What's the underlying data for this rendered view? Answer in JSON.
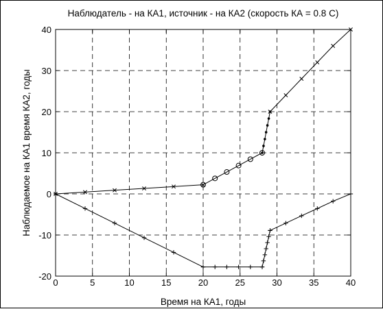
{
  "chart_data": {
    "type": "line",
    "title": "Наблюдатель - на КА1, источник - на КА2  (скорость КА = 0.8 С)",
    "xlabel": "Время на КА1, годы",
    "ylabel": "Наблюдаемое на КА1 время КА2, годы",
    "xlim": [
      0,
      40
    ],
    "ylim": [
      -20,
      40
    ],
    "xticks": [
      0,
      5,
      10,
      15,
      20,
      25,
      30,
      35,
      40
    ],
    "yticks": [
      -20,
      -10,
      0,
      10,
      20,
      30,
      40
    ],
    "xtick_labels": [
      "0",
      "5",
      "10",
      "15",
      "20",
      "25",
      "30",
      "35",
      "40"
    ],
    "ytick_labels": [
      "-20",
      "-10",
      "0",
      "10",
      "20",
      "30",
      "40"
    ],
    "grid": true,
    "grid_style": "dashed",
    "line_color": "#000000",
    "series": [
      {
        "marker": "x",
        "points": [
          [
            0,
            0
          ],
          [
            4,
            0.44
          ],
          [
            8,
            0.89
          ],
          [
            12,
            1.33
          ],
          [
            16,
            1.78
          ],
          [
            20,
            2.22
          ]
        ]
      },
      {
        "marker": "o",
        "points": [
          [
            20,
            2.22
          ],
          [
            21.6,
            3.78
          ],
          [
            23.2,
            5.33
          ],
          [
            24.8,
            6.89
          ],
          [
            26.4,
            8.44
          ],
          [
            28,
            10
          ]
        ]
      },
      {
        "marker": "dot",
        "points": [
          [
            28,
            10
          ],
          [
            28.18,
            11.67
          ],
          [
            28.36,
            13.33
          ],
          [
            28.53,
            15
          ],
          [
            28.71,
            16.67
          ],
          [
            28.89,
            18.33
          ],
          [
            29.07,
            20
          ]
        ]
      },
      {
        "marker": "x",
        "points": [
          [
            29.07,
            20
          ],
          [
            31.2,
            24
          ],
          [
            33.33,
            28
          ],
          [
            35.47,
            32
          ],
          [
            37.6,
            36
          ],
          [
            40,
            40
          ]
        ]
      },
      {
        "marker": "plus",
        "points": [
          [
            0,
            0
          ],
          [
            4,
            -3.56
          ],
          [
            8,
            -7.11
          ],
          [
            12,
            -10.67
          ],
          [
            16,
            -14.22
          ],
          [
            20,
            -17.78
          ]
        ]
      },
      {
        "marker": "plus",
        "points": [
          [
            20,
            -17.78
          ],
          [
            21.6,
            -17.78
          ],
          [
            23.2,
            -17.78
          ],
          [
            24.8,
            -17.78
          ],
          [
            26.4,
            -17.78
          ],
          [
            28,
            -17.78
          ]
        ]
      },
      {
        "marker": "plus",
        "points": [
          [
            28,
            -17.78
          ],
          [
            28.18,
            -16.3
          ],
          [
            28.36,
            -14.81
          ],
          [
            28.53,
            -13.33
          ],
          [
            28.71,
            -11.85
          ],
          [
            28.89,
            -10.37
          ],
          [
            29.07,
            -8.89
          ]
        ]
      },
      {
        "marker": "plus",
        "points": [
          [
            29.07,
            -8.89
          ],
          [
            31.2,
            -7.11
          ],
          [
            33.33,
            -5.33
          ],
          [
            35.47,
            -3.56
          ],
          [
            37.6,
            -1.78
          ],
          [
            40,
            0
          ]
        ]
      }
    ]
  }
}
